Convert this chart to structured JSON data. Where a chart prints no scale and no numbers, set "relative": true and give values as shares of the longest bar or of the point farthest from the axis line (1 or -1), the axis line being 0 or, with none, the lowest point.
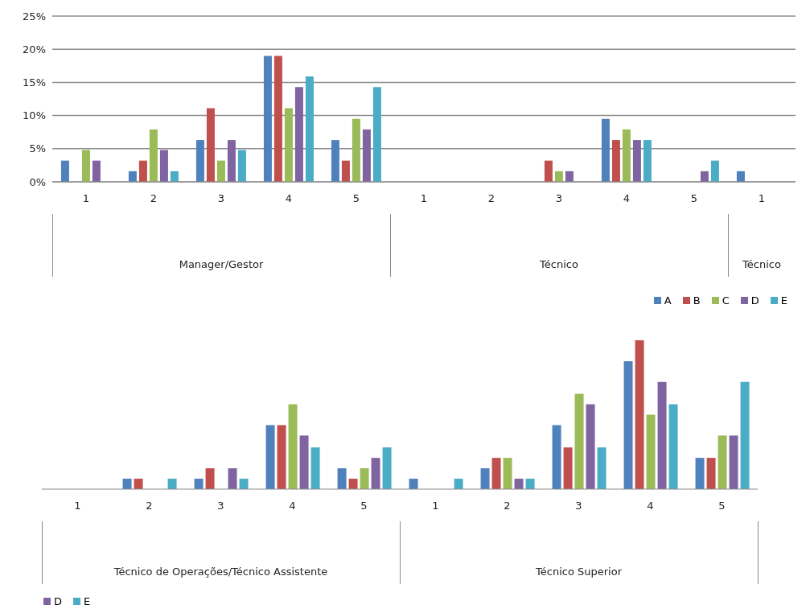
{
  "chart_data": [
    {
      "type": "bar",
      "categories": [
        "1",
        "2",
        "3",
        "4",
        "5",
        "1",
        "2",
        "3",
        "4",
        "5",
        "1"
      ],
      "ylim": [
        0,
        25
      ],
      "yticks": [
        {
          "value": 0,
          "label": "0%"
        },
        {
          "value": 5,
          "label": "5%"
        },
        {
          "value": 10,
          "label": "10%"
        },
        {
          "value": 15,
          "label": "15%"
        },
        {
          "value": 20,
          "label": "20%"
        },
        {
          "value": 25,
          "label": "25%"
        }
      ],
      "grid": "y",
      "legend": "bottom right",
      "annotations": [
        "Manager/Gestor",
        "Técnico",
        "Técnico"
      ],
      "series": [
        {
          "name": "A",
          "color": "#4f81bd",
          "values": [
            3.2,
            1.6,
            6.3,
            19.0,
            6.3,
            0,
            0,
            0,
            9.5,
            0,
            1.6
          ]
        },
        {
          "name": "B",
          "color": "#c0504d",
          "values": [
            0,
            3.2,
            11.1,
            19.0,
            3.2,
            0,
            0,
            3.2,
            6.3,
            0,
            null
          ]
        },
        {
          "name": "C",
          "color": "#9bbb59",
          "values": [
            4.8,
            7.9,
            3.2,
            11.1,
            9.5,
            0,
            0,
            1.6,
            7.9,
            0,
            null
          ]
        },
        {
          "name": "D",
          "color": "#8064a2",
          "values": [
            3.2,
            4.8,
            6.3,
            14.3,
            7.9,
            0,
            0,
            1.6,
            6.3,
            1.6,
            null
          ]
        },
        {
          "name": "E",
          "color": "#4bacc6",
          "values": [
            0,
            1.6,
            4.8,
            15.9,
            14.3,
            0,
            0,
            0,
            6.3,
            3.2,
            null
          ]
        }
      ]
    },
    {
      "type": "bar",
      "categories": [
        "1",
        "2",
        "3",
        "4",
        "5",
        "1",
        "2",
        "3",
        "4",
        "5"
      ],
      "relative": true,
      "legend": "bottom left",
      "annotations": [
        "Técnico de Operações/Técnico Assistente",
        "Técnico Superior"
      ],
      "series": [
        {
          "color": "#4f81bd",
          "values": [
            0,
            0.07,
            0.07,
            0.43,
            0.14,
            0.07,
            0.14,
            0.43,
            0.86,
            0.21
          ]
        },
        {
          "color": "#c0504d",
          "values": [
            0,
            0.07,
            0.14,
            0.43,
            0.07,
            0,
            0.21,
            0.28,
            1,
            0.21
          ]
        },
        {
          "color": "#9bbb59",
          "values": [
            0,
            0,
            0,
            0.57,
            0.14,
            0,
            0.21,
            0.64,
            0.5,
            0.36
          ]
        },
        {
          "name": "D",
          "color": "#8064a2",
          "values": [
            0,
            0,
            0.14,
            0.36,
            0.21,
            0,
            0.07,
            0.57,
            0.72,
            0.36
          ]
        },
        {
          "name": "E",
          "color": "#4bacc6",
          "values": [
            0,
            0.07,
            0.07,
            0.28,
            0.28,
            0.07,
            0.07,
            0.28,
            0.57,
            0.72
          ]
        }
      ]
    }
  ]
}
